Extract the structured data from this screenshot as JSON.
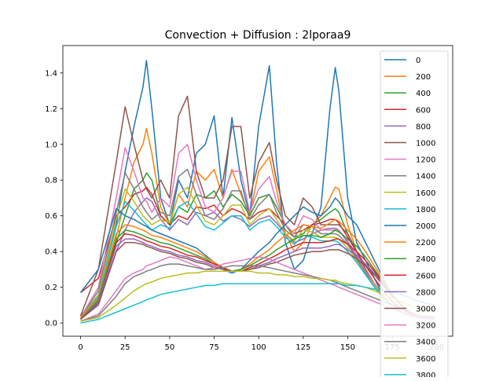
{
  "chart_data": {
    "type": "line",
    "title": "Convection + Diffusion : 2lporaa9",
    "xlabel": "",
    "ylabel": "",
    "xlim": [
      -9.95,
      208.95
    ],
    "ylim": [
      -0.074,
      1.553
    ],
    "x_ticks": [
      0,
      25,
      50,
      75,
      100,
      125,
      150,
      175,
      200
    ],
    "x_tick_labels": [
      "0",
      "25",
      "50",
      "75",
      "100",
      "125",
      "150",
      "175",
      "200"
    ],
    "y_ticks": [
      0.0,
      0.2,
      0.4,
      0.6,
      0.8,
      1.0,
      1.2,
      1.4
    ],
    "y_tick_labels": [
      "0.0",
      "0.2",
      "0.4",
      "0.6",
      "0.8",
      "1.0",
      "1.2",
      "1.4"
    ],
    "legend_position": "top-right",
    "legend": [
      "0",
      "200",
      "400",
      "600",
      "800",
      "1000",
      "1200",
      "1400",
      "1600",
      "1800",
      "2000",
      "2200",
      "2400",
      "2600",
      "2800",
      "3000",
      "3200",
      "3400",
      "3600",
      "3800"
    ],
    "colors": [
      "#1f77b4",
      "#ff7f0e",
      "#2ca02c",
      "#d62728",
      "#9467bd",
      "#8c564b",
      "#e377c2",
      "#7f7f7f",
      "#bcbd22",
      "#17becf"
    ],
    "x": [
      0,
      10,
      20,
      25,
      30,
      35,
      37,
      40,
      45,
      50,
      55,
      60,
      65,
      70,
      75,
      80,
      85,
      90,
      95,
      100,
      106,
      110,
      115,
      120,
      125,
      130,
      135,
      140,
      143,
      145,
      150,
      155,
      160,
      165,
      170,
      175,
      180,
      185,
      190,
      199
    ],
    "series": [
      {
        "name": "0",
        "values": [
          0.04,
          0.15,
          0.55,
          0.85,
          1.1,
          1.32,
          1.47,
          1.2,
          0.7,
          0.55,
          0.8,
          0.7,
          0.95,
          1.0,
          1.16,
          0.7,
          1.15,
          0.8,
          0.6,
          1.1,
          1.44,
          0.9,
          0.45,
          0.3,
          0.35,
          0.5,
          0.65,
          1.2,
          1.43,
          1.3,
          0.7,
          0.45,
          0.35,
          0.25,
          0.15,
          0.1,
          0.06,
          0.04,
          0.03,
          0.02
        ]
      },
      {
        "name": "200",
        "values": [
          0.03,
          0.13,
          0.48,
          0.7,
          0.9,
          1.0,
          1.09,
          0.95,
          0.65,
          0.55,
          0.72,
          0.65,
          0.85,
          0.8,
          0.86,
          0.7,
          0.86,
          0.72,
          0.6,
          0.85,
          0.93,
          0.75,
          0.5,
          0.4,
          0.45,
          0.55,
          0.6,
          0.7,
          0.76,
          0.75,
          0.55,
          0.4,
          0.3,
          0.22,
          0.15,
          0.1,
          0.06,
          0.04,
          0.03,
          0.02
        ]
      },
      {
        "name": "400",
        "values": [
          0.03,
          0.12,
          0.45,
          0.6,
          0.75,
          0.8,
          0.84,
          0.8,
          0.6,
          0.55,
          0.65,
          0.62,
          0.72,
          0.7,
          0.74,
          0.65,
          0.72,
          0.68,
          0.6,
          0.7,
          0.72,
          0.65,
          0.55,
          0.48,
          0.5,
          0.55,
          0.58,
          0.62,
          0.64,
          0.62,
          0.5,
          0.4,
          0.3,
          0.22,
          0.15,
          0.1,
          0.06,
          0.04,
          0.03,
          0.02
        ]
      },
      {
        "name": "600",
        "values": [
          0.17,
          0.25,
          0.6,
          0.65,
          0.72,
          0.74,
          0.76,
          0.72,
          0.6,
          0.55,
          0.6,
          0.58,
          0.65,
          0.64,
          0.66,
          0.6,
          0.64,
          0.62,
          0.58,
          0.62,
          0.64,
          0.6,
          0.55,
          0.5,
          0.52,
          0.55,
          0.56,
          0.58,
          0.58,
          0.56,
          0.48,
          0.4,
          0.32,
          0.25,
          0.18,
          0.12,
          0.08,
          0.05,
          0.04,
          0.03
        ]
      },
      {
        "name": "800",
        "values": [
          0.02,
          0.1,
          0.4,
          0.52,
          0.62,
          0.68,
          0.7,
          0.68,
          0.58,
          0.52,
          0.58,
          0.55,
          0.62,
          0.6,
          0.62,
          0.57,
          0.6,
          0.58,
          0.54,
          0.58,
          0.6,
          0.56,
          0.5,
          0.45,
          0.47,
          0.5,
          0.52,
          0.53,
          0.53,
          0.52,
          0.45,
          0.37,
          0.29,
          0.22,
          0.15,
          0.1,
          0.06,
          0.04,
          0.03,
          0.02
        ]
      },
      {
        "name": "1000",
        "values": [
          0.04,
          0.3,
          0.9,
          1.21,
          1.0,
          0.8,
          0.75,
          0.7,
          0.8,
          0.7,
          1.16,
          1.27,
          0.85,
          0.7,
          0.7,
          0.8,
          1.1,
          1.1,
          0.7,
          0.9,
          1.01,
          0.8,
          0.6,
          0.55,
          0.7,
          0.65,
          0.55,
          0.55,
          0.55,
          0.55,
          0.5,
          0.4,
          0.3,
          0.22,
          0.15,
          0.1,
          0.06,
          0.04,
          0.03,
          0.02
        ]
      },
      {
        "name": "1200",
        "values": [
          0.03,
          0.2,
          0.7,
          0.98,
          0.85,
          0.7,
          0.68,
          0.62,
          0.7,
          0.65,
          0.95,
          1.0,
          0.8,
          0.65,
          0.62,
          0.7,
          0.85,
          0.85,
          0.62,
          0.75,
          0.82,
          0.68,
          0.55,
          0.5,
          0.6,
          0.58,
          0.52,
          0.52,
          0.52,
          0.52,
          0.46,
          0.38,
          0.29,
          0.22,
          0.15,
          0.1,
          0.06,
          0.04,
          0.03,
          0.02
        ]
      },
      {
        "name": "1400",
        "values": [
          0.03,
          0.18,
          0.62,
          0.84,
          0.75,
          0.65,
          0.62,
          0.58,
          0.62,
          0.6,
          0.82,
          0.86,
          0.72,
          0.6,
          0.58,
          0.64,
          0.74,
          0.74,
          0.58,
          0.66,
          0.72,
          0.62,
          0.52,
          0.48,
          0.55,
          0.54,
          0.5,
          0.5,
          0.5,
          0.49,
          0.44,
          0.36,
          0.28,
          0.21,
          0.15,
          0.1,
          0.06,
          0.04,
          0.03,
          0.02
        ]
      },
      {
        "name": "1600",
        "values": [
          0.03,
          0.16,
          0.58,
          0.75,
          0.68,
          0.6,
          0.58,
          0.55,
          0.58,
          0.56,
          0.72,
          0.76,
          0.66,
          0.57,
          0.55,
          0.6,
          0.66,
          0.66,
          0.55,
          0.6,
          0.64,
          0.58,
          0.5,
          0.46,
          0.52,
          0.51,
          0.48,
          0.48,
          0.48,
          0.47,
          0.42,
          0.35,
          0.27,
          0.21,
          0.15,
          0.1,
          0.06,
          0.04,
          0.03,
          0.02
        ]
      },
      {
        "name": "1800",
        "values": [
          0.03,
          0.15,
          0.54,
          0.68,
          0.63,
          0.57,
          0.55,
          0.52,
          0.55,
          0.53,
          0.65,
          0.68,
          0.61,
          0.54,
          0.52,
          0.56,
          0.6,
          0.6,
          0.52,
          0.56,
          0.58,
          0.54,
          0.48,
          0.44,
          0.49,
          0.48,
          0.46,
          0.46,
          0.46,
          0.45,
          0.4,
          0.34,
          0.27,
          0.2,
          0.14,
          0.1,
          0.06,
          0.04,
          0.03,
          0.02
        ]
      },
      {
        "name": "2000",
        "values": [
          0.17,
          0.3,
          0.64,
          0.6,
          0.58,
          0.55,
          0.54,
          0.52,
          0.5,
          0.48,
          0.46,
          0.44,
          0.42,
          0.38,
          0.34,
          0.3,
          0.28,
          0.3,
          0.35,
          0.4,
          0.45,
          0.5,
          0.55,
          0.6,
          0.65,
          0.62,
          0.6,
          0.65,
          0.7,
          0.68,
          0.6,
          0.55,
          0.45,
          0.35,
          0.25,
          0.15,
          0.1,
          0.06,
          0.04,
          0.03
        ]
      },
      {
        "name": "2200",
        "values": [
          0.03,
          0.14,
          0.5,
          0.55,
          0.54,
          0.52,
          0.51,
          0.49,
          0.48,
          0.46,
          0.44,
          0.42,
          0.4,
          0.37,
          0.34,
          0.31,
          0.29,
          0.3,
          0.33,
          0.37,
          0.41,
          0.45,
          0.49,
          0.52,
          0.55,
          0.54,
          0.53,
          0.56,
          0.58,
          0.57,
          0.52,
          0.47,
          0.4,
          0.32,
          0.24,
          0.16,
          0.1,
          0.06,
          0.04,
          0.03
        ]
      },
      {
        "name": "2400",
        "values": [
          0.02,
          0.13,
          0.47,
          0.52,
          0.51,
          0.49,
          0.48,
          0.47,
          0.45,
          0.44,
          0.42,
          0.4,
          0.38,
          0.36,
          0.33,
          0.31,
          0.29,
          0.3,
          0.32,
          0.35,
          0.38,
          0.41,
          0.44,
          0.47,
          0.49,
          0.49,
          0.48,
          0.5,
          0.52,
          0.51,
          0.47,
          0.43,
          0.37,
          0.3,
          0.23,
          0.16,
          0.1,
          0.06,
          0.04,
          0.03
        ]
      },
      {
        "name": "2600",
        "values": [
          0.02,
          0.12,
          0.45,
          0.5,
          0.49,
          0.47,
          0.46,
          0.45,
          0.43,
          0.42,
          0.4,
          0.38,
          0.37,
          0.35,
          0.33,
          0.31,
          0.29,
          0.29,
          0.31,
          0.33,
          0.36,
          0.38,
          0.41,
          0.43,
          0.45,
          0.45,
          0.45,
          0.46,
          0.47,
          0.47,
          0.44,
          0.4,
          0.35,
          0.29,
          0.22,
          0.15,
          0.1,
          0.06,
          0.04,
          0.03
        ]
      },
      {
        "name": "2800",
        "values": [
          0.02,
          0.12,
          0.43,
          0.47,
          0.47,
          0.45,
          0.44,
          0.43,
          0.41,
          0.4,
          0.38,
          0.37,
          0.35,
          0.34,
          0.32,
          0.3,
          0.29,
          0.29,
          0.3,
          0.32,
          0.34,
          0.36,
          0.38,
          0.4,
          0.42,
          0.42,
          0.42,
          0.43,
          0.44,
          0.44,
          0.41,
          0.38,
          0.33,
          0.28,
          0.21,
          0.15,
          0.1,
          0.06,
          0.04,
          0.03
        ]
      },
      {
        "name": "3000",
        "values": [
          0.02,
          0.11,
          0.4,
          0.45,
          0.45,
          0.44,
          0.43,
          0.42,
          0.4,
          0.39,
          0.37,
          0.36,
          0.34,
          0.33,
          0.31,
          0.3,
          0.29,
          0.29,
          0.3,
          0.31,
          0.33,
          0.34,
          0.36,
          0.38,
          0.39,
          0.4,
          0.4,
          0.41,
          0.41,
          0.41,
          0.39,
          0.36,
          0.32,
          0.27,
          0.21,
          0.15,
          0.1,
          0.06,
          0.04,
          0.03
        ]
      },
      {
        "name": "3200",
        "values": [
          0.01,
          0.05,
          0.18,
          0.25,
          0.28,
          0.3,
          0.32,
          0.33,
          0.35,
          0.37,
          0.36,
          0.34,
          0.32,
          0.3,
          0.31,
          0.33,
          0.34,
          0.35,
          0.36,
          0.37,
          0.36,
          0.34,
          0.32,
          0.3,
          0.28,
          0.26,
          0.24,
          0.22,
          0.21,
          0.2,
          0.18,
          0.16,
          0.14,
          0.12,
          0.1,
          0.08,
          0.06,
          0.04,
          0.03,
          0.02
        ]
      },
      {
        "name": "3400",
        "values": [
          0.01,
          0.04,
          0.15,
          0.22,
          0.26,
          0.28,
          0.29,
          0.3,
          0.32,
          0.33,
          0.33,
          0.32,
          0.31,
          0.3,
          0.3,
          0.31,
          0.32,
          0.32,
          0.32,
          0.32,
          0.31,
          0.3,
          0.29,
          0.28,
          0.27,
          0.26,
          0.25,
          0.24,
          0.23,
          0.22,
          0.2,
          0.18,
          0.16,
          0.14,
          0.12,
          0.1,
          0.08,
          0.06,
          0.04,
          0.03
        ]
      },
      {
        "name": "3600",
        "values": [
          0.01,
          0.03,
          0.1,
          0.14,
          0.18,
          0.21,
          0.22,
          0.23,
          0.25,
          0.26,
          0.27,
          0.28,
          0.28,
          0.29,
          0.29,
          0.29,
          0.29,
          0.29,
          0.29,
          0.28,
          0.28,
          0.27,
          0.27,
          0.26,
          0.26,
          0.25,
          0.25,
          0.24,
          0.24,
          0.23,
          0.22,
          0.21,
          0.2,
          0.18,
          0.16,
          0.14,
          0.12,
          0.1,
          0.08,
          0.06
        ]
      },
      {
        "name": "3800",
        "values": [
          0.0,
          0.02,
          0.06,
          0.08,
          0.1,
          0.12,
          0.13,
          0.14,
          0.16,
          0.17,
          0.18,
          0.19,
          0.2,
          0.21,
          0.21,
          0.22,
          0.22,
          0.22,
          0.22,
          0.22,
          0.22,
          0.22,
          0.22,
          0.22,
          0.22,
          0.22,
          0.22,
          0.22,
          0.22,
          0.22,
          0.21,
          0.21,
          0.2,
          0.19,
          0.18,
          0.17,
          0.16,
          0.14,
          0.12,
          0.1
        ]
      }
    ]
  }
}
